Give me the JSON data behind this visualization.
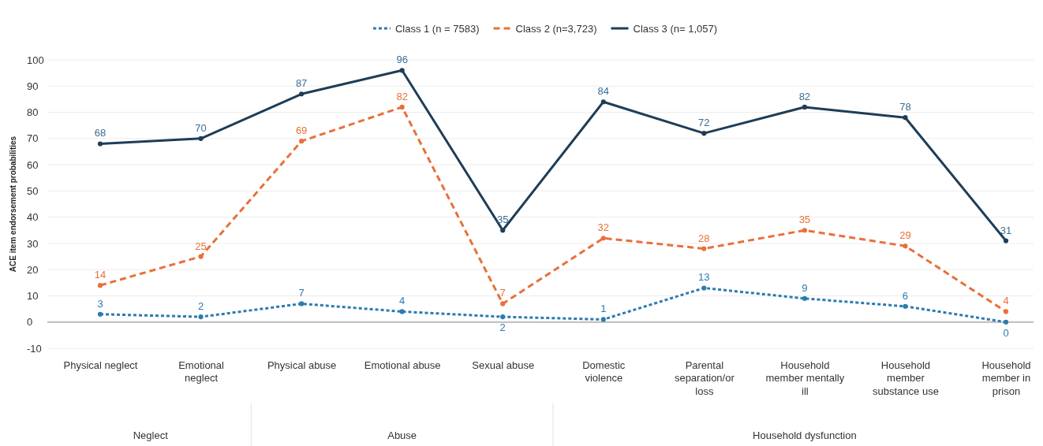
{
  "chart_data": {
    "type": "line",
    "ylabel": "ACE item endorsement probabilities",
    "categories": [
      "Physical neglect",
      "Emotional neglect",
      "Physical abuse",
      "Emotional abuse",
      "Sexual abuse",
      "Domestic violence",
      "Parental separation/or loss",
      "Household member mentally ill",
      "Household member substance use",
      "Household member in prison"
    ],
    "series": [
      {
        "name": "Class 1 (n = 7583)",
        "color": "#2b7bb0",
        "line_style": "dotted",
        "values": [
          3,
          2,
          7,
          4,
          2,
          1,
          13,
          9,
          6,
          0
        ]
      },
      {
        "name": "Class 2 (n=3,723)",
        "color": "#e8703a",
        "line_style": "dashed",
        "values": [
          14,
          25,
          69,
          82,
          7,
          32,
          28,
          35,
          29,
          4
        ]
      },
      {
        "name": "Class 3 (n= 1,057)",
        "color": "#1e3d58",
        "line_style": "solid",
        "values": [
          68,
          70,
          87,
          96,
          35,
          84,
          72,
          82,
          78,
          31
        ]
      }
    ],
    "ylim": [
      -10,
      100
    ],
    "yticks": [
      -10,
      0,
      10,
      20,
      30,
      40,
      50,
      60,
      70,
      80,
      90,
      100
    ],
    "grid": "y",
    "legend": "top",
    "marker": "circle",
    "data_labels": true,
    "annotations": [
      "Neglect",
      "Abuse",
      "Household dysfunction"
    ]
  }
}
